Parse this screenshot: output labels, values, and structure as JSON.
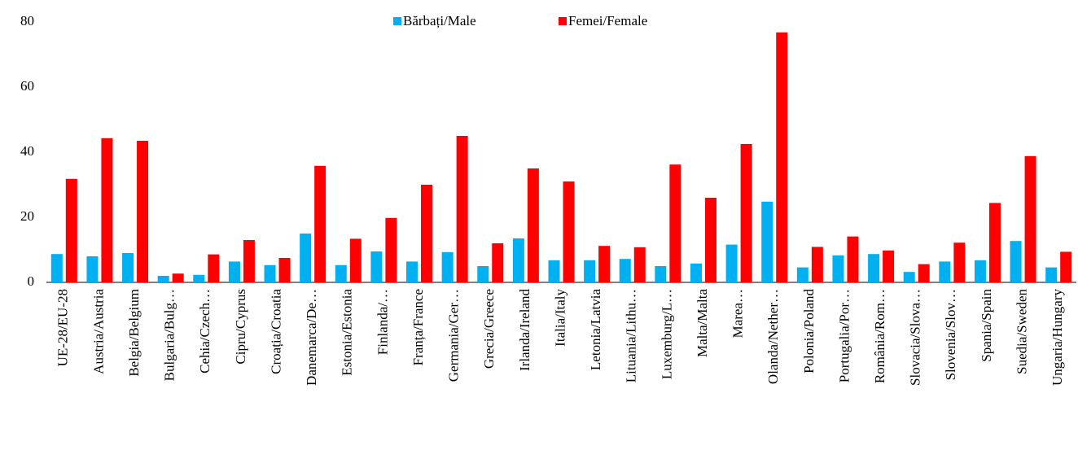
{
  "chart_data": {
    "type": "bar",
    "categories": [
      "UE-28/EU-28",
      "Austria/Austria",
      "Belgia/Belgium",
      "Bulgaria/Bulg…",
      "Cehia/Czech…",
      "Cipru/Cyprus",
      "Croația/Croatia",
      "Danemarca/De…",
      "Estonia/Estonia",
      "Finlanda/…",
      "Franța/France",
      "Germania/Ger…",
      "Grecia/Greece",
      "Irlanda/Ireland",
      "Italia/Italy",
      "Letonia/Latvia",
      "Lituania/Lithu…",
      "Luxemburg/L…",
      "Malta/Malta",
      "Marea…",
      "Olanda/Nether…",
      "Polonia/Poland",
      "Portugalia/Por…",
      "România/Rom…",
      "Slovacia/Slova…",
      "Slovenia/Slov…",
      "Spania/Spain",
      "Suedia/Sweden",
      "Ungaria/Hungary"
    ],
    "series": [
      {
        "name": "Bărbați/Male",
        "color": "#00b0f0",
        "values": [
          8.7,
          8,
          9,
          2,
          2.3,
          6.4,
          5.3,
          15,
          5.3,
          9.5,
          6.4,
          9.3,
          5,
          13.5,
          6.8,
          6.8,
          7.2,
          5,
          5.8,
          11.6,
          24.8,
          4.6,
          8.3,
          8.7,
          3.2,
          6.4,
          6.8,
          12.7,
          4.6
        ]
      },
      {
        "name": "Femei/Female",
        "color": "#ff0000",
        "values": [
          31.8,
          44.3,
          43.5,
          2.7,
          8.6,
          13,
          7.5,
          35.8,
          13.4,
          19.8,
          30,
          45,
          12,
          35,
          31,
          11.2,
          10.8,
          36.2,
          26,
          42.5,
          76.8,
          10.9,
          14.1,
          9.8,
          5.6,
          12.2,
          24.4,
          38.8,
          9.4
        ]
      }
    ],
    "ylim": [
      0,
      80
    ],
    "yticks": [
      0,
      20,
      40,
      60,
      80
    ],
    "grid": false,
    "legend": "top"
  }
}
